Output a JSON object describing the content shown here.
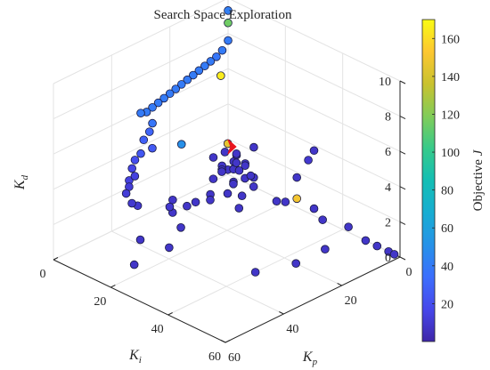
{
  "chart_data": {
    "type": "scatter",
    "title": "Search Space Exploration",
    "axes": {
      "x": {
        "name": "K",
        "subscript": "p",
        "range": [
          0,
          60
        ],
        "ticks": [
          "0",
          "20",
          "40",
          "60"
        ]
      },
      "y": {
        "name": "K",
        "subscript": "i",
        "range": [
          0,
          60
        ],
        "ticks": [
          "0",
          "20",
          "40",
          "60"
        ]
      },
      "z": {
        "name": "K",
        "subscript": "d",
        "range": [
          0,
          10
        ],
        "ticks": [
          "0",
          "2",
          "4",
          "6",
          "8",
          "10"
        ]
      }
    },
    "grid": true,
    "view": "3d",
    "colorbar": {
      "label_prefix": "Objective ",
      "label_var": "J",
      "range": [
        0,
        170
      ],
      "ticks": [
        "20",
        "40",
        "60",
        "80",
        "100",
        "120",
        "140",
        "160"
      ],
      "colormap": "parula"
    },
    "best_marker": {
      "color": "#e8141c",
      "kp": 6,
      "ki": 7,
      "kd": 2.6
    },
    "points": [
      {
        "kp": 0,
        "ki": 0,
        "kd": 10.3,
        "J": 75
      },
      {
        "kp": 0,
        "ki": 0,
        "kd": 9.3,
        "J": 42
      },
      {
        "kp": 0,
        "ki": 0,
        "kd": 8.6,
        "J": 115
      },
      {
        "kp": 0,
        "ki": 0,
        "kd": 7.6,
        "J": 40
      },
      {
        "kp": 2,
        "ki": 0,
        "kd": 7.2,
        "J": 40
      },
      {
        "kp": 2.5,
        "ki": 0,
        "kd": 5.8,
        "J": 165
      },
      {
        "kp": 4,
        "ki": 0,
        "kd": 7.0,
        "J": 38
      },
      {
        "kp": 6,
        "ki": 0,
        "kd": 6.9,
        "J": 40
      },
      {
        "kp": 8,
        "ki": 0,
        "kd": 6.8,
        "J": 40
      },
      {
        "kp": 10,
        "ki": 0,
        "kd": 6.7,
        "J": 40
      },
      {
        "kp": 12,
        "ki": 0,
        "kd": 6.6,
        "J": 40
      },
      {
        "kp": 14,
        "ki": 0,
        "kd": 6.5,
        "J": 40
      },
      {
        "kp": 16,
        "ki": 0,
        "kd": 6.4,
        "J": 40
      },
      {
        "kp": 18,
        "ki": 0,
        "kd": 6.3,
        "J": 40
      },
      {
        "kp": 20,
        "ki": 0,
        "kd": 6.2,
        "J": 40
      },
      {
        "kp": 22,
        "ki": 0,
        "kd": 6.1,
        "J": 40
      },
      {
        "kp": 24,
        "ki": 0,
        "kd": 6.0,
        "J": 40
      },
      {
        "kp": 26,
        "ki": 0,
        "kd": 5.9,
        "J": 40
      },
      {
        "kp": 28,
        "ki": 0,
        "kd": 5.8,
        "J": 40
      },
      {
        "kp": 30,
        "ki": 0,
        "kd": 5.9,
        "J": 40
      },
      {
        "kp": 26,
        "ki": 0,
        "kd": 5.0,
        "J": 38
      },
      {
        "kp": 27,
        "ki": 0,
        "kd": 4.6,
        "J": 30
      },
      {
        "kp": 29,
        "ki": 0,
        "kd": 4.3,
        "J": 28
      },
      {
        "kp": 28,
        "ki": 2,
        "kd": 3.9,
        "J": 25
      },
      {
        "kp": 16,
        "ki": 0,
        "kd": 3.0,
        "J": 50
      },
      {
        "kp": 30,
        "ki": 0,
        "kd": 3.6,
        "J": 24
      },
      {
        "kp": 32,
        "ki": 0,
        "kd": 3.4,
        "J": 20
      },
      {
        "kp": 33,
        "ki": 0,
        "kd": 3.0,
        "J": 16
      },
      {
        "kp": 34,
        "ki": 2,
        "kd": 2.8,
        "J": 14
      },
      {
        "kp": 34,
        "ki": 0,
        "kd": 2.4,
        "J": 14
      },
      {
        "kp": 35,
        "ki": 1,
        "kd": 2.2,
        "J": 12
      },
      {
        "kp": 36,
        "ki": 1,
        "kd": 1.9,
        "J": 12
      },
      {
        "kp": 36,
        "ki": 3,
        "kd": 1.5,
        "J": 10
      },
      {
        "kp": 34,
        "ki": 3,
        "kd": 1.2,
        "J": 10
      },
      {
        "kp": 24,
        "ki": 4,
        "kd": 0.4,
        "J": 10
      },
      {
        "kp": 23,
        "ki": 4,
        "kd": 0.0,
        "J": 8
      },
      {
        "kp": 21,
        "ki": 2,
        "kd": 0.4,
        "J": 8
      },
      {
        "kp": 22,
        "ki": 8,
        "kd": 0.6,
        "J": 8
      },
      {
        "kp": 21,
        "ki": 10,
        "kd": 0.9,
        "J": 8
      },
      {
        "kp": 0,
        "ki": 30,
        "kd": 3.7,
        "J": 8
      },
      {
        "kp": 0,
        "ki": 28,
        "kd": 3.0,
        "J": 10
      },
      {
        "kp": 0,
        "ki": 24,
        "kd": 1.7,
        "J": 8
      },
      {
        "kp": 0,
        "ki": 24,
        "kd": 0.5,
        "J": 150
      },
      {
        "kp": 0,
        "ki": 30,
        "kd": 0.4,
        "J": 8
      },
      {
        "kp": 0,
        "ki": 33,
        "kd": 0.0,
        "J": 8
      },
      {
        "kp": 0,
        "ki": 20,
        "kd": 0.0,
        "J": 8
      },
      {
        "kp": 0,
        "ki": 42,
        "kd": 0.3,
        "J": 8
      },
      {
        "kp": 0,
        "ki": 56,
        "kd": 0.0,
        "J": 8
      },
      {
        "kp": 0,
        "ki": 48,
        "kd": 0.0,
        "J": 8
      },
      {
        "kp": 0,
        "ki": 52,
        "kd": 0.0,
        "J": 8
      },
      {
        "kp": 0,
        "ki": 58,
        "kd": 0.0,
        "J": 8
      },
      {
        "kp": 10,
        "ki": 44,
        "kd": 0.0,
        "J": 8
      },
      {
        "kp": 20,
        "ki": 44,
        "kd": 0.0,
        "J": 8
      },
      {
        "kp": 30,
        "ki": 40,
        "kd": 0.0,
        "J": 8
      },
      {
        "kp": 48,
        "ki": 16,
        "kd": 0.0,
        "J": 8
      },
      {
        "kp": 36,
        "ki": 16,
        "kd": 0.0,
        "J": 8
      },
      {
        "kp": 40,
        "ki": 10,
        "kd": 0.3,
        "J": 8
      },
      {
        "kp": 30,
        "ki": 14,
        "kd": 0.5,
        "J": 8
      },
      {
        "kp": 12,
        "ki": 16,
        "kd": 0.3,
        "J": 8
      },
      {
        "kp": 14,
        "ki": 8,
        "kd": 0.3,
        "J": 8
      },
      {
        "kp": 10,
        "ki": 10,
        "kd": 0.5,
        "J": 8
      },
      {
        "kp": 12,
        "ki": 6,
        "kd": 0.3,
        "J": 8
      },
      {
        "kp": 5,
        "ki": 22,
        "kd": 0.6,
        "J": 8
      },
      {
        "kp": 6,
        "ki": 6,
        "kd": 2.7,
        "J": 145
      },
      {
        "kp": 4,
        "ki": 6,
        "kd": 1.1,
        "J": 8
      },
      {
        "kp": 4,
        "ki": 4,
        "kd": 0.9,
        "J": 8
      },
      {
        "kp": 6,
        "ki": 8,
        "kd": 1.4,
        "J": 8
      },
      {
        "kp": 7,
        "ki": 10,
        "kd": 2.0,
        "J": 8
      },
      {
        "kp": 8,
        "ki": 6,
        "kd": 1.6,
        "J": 8
      },
      {
        "kp": 8,
        "ki": 10,
        "kd": 1.0,
        "J": 8
      },
      {
        "kp": 10,
        "ki": 8,
        "kd": 1.7,
        "J": 8
      },
      {
        "kp": 6,
        "ki": 12,
        "kd": 1.2,
        "J": 8
      },
      {
        "kp": 4,
        "ki": 10,
        "kd": 1.6,
        "J": 8
      },
      {
        "kp": 5,
        "ki": 8,
        "kd": 2.2,
        "J": 8
      },
      {
        "kp": 7,
        "ki": 6,
        "kd": 2.3,
        "J": 8
      },
      {
        "kp": 9,
        "ki": 4,
        "kd": 2.0,
        "J": 8
      },
      {
        "kp": 3,
        "ki": 12,
        "kd": 1.0,
        "J": 8
      },
      {
        "kp": 8,
        "ki": 12,
        "kd": 1.8,
        "J": 8
      },
      {
        "kp": 2,
        "ki": 8,
        "kd": 1.4,
        "J": 8
      },
      {
        "kp": 10,
        "ki": 12,
        "kd": 1.2,
        "J": 8
      },
      {
        "kp": 5,
        "ki": 14,
        "kd": 0.8,
        "J": 8
      },
      {
        "kp": 6,
        "ki": 14,
        "kd": 1.5,
        "J": 8
      },
      {
        "kp": 3,
        "ki": 6,
        "kd": 1.8,
        "J": 8
      },
      {
        "kp": 11,
        "ki": 6,
        "kd": 1.1,
        "J": 8
      },
      {
        "kp": 2,
        "ki": 4,
        "kd": 1.2,
        "J": 8
      },
      {
        "kp": 9,
        "ki": 14,
        "kd": 0.6,
        "J": 8
      },
      {
        "kp": 1,
        "ki": 10,
        "kd": 2.4,
        "J": 8
      },
      {
        "kp": 12,
        "ki": 10,
        "kd": 1.9,
        "J": 8
      }
    ]
  }
}
